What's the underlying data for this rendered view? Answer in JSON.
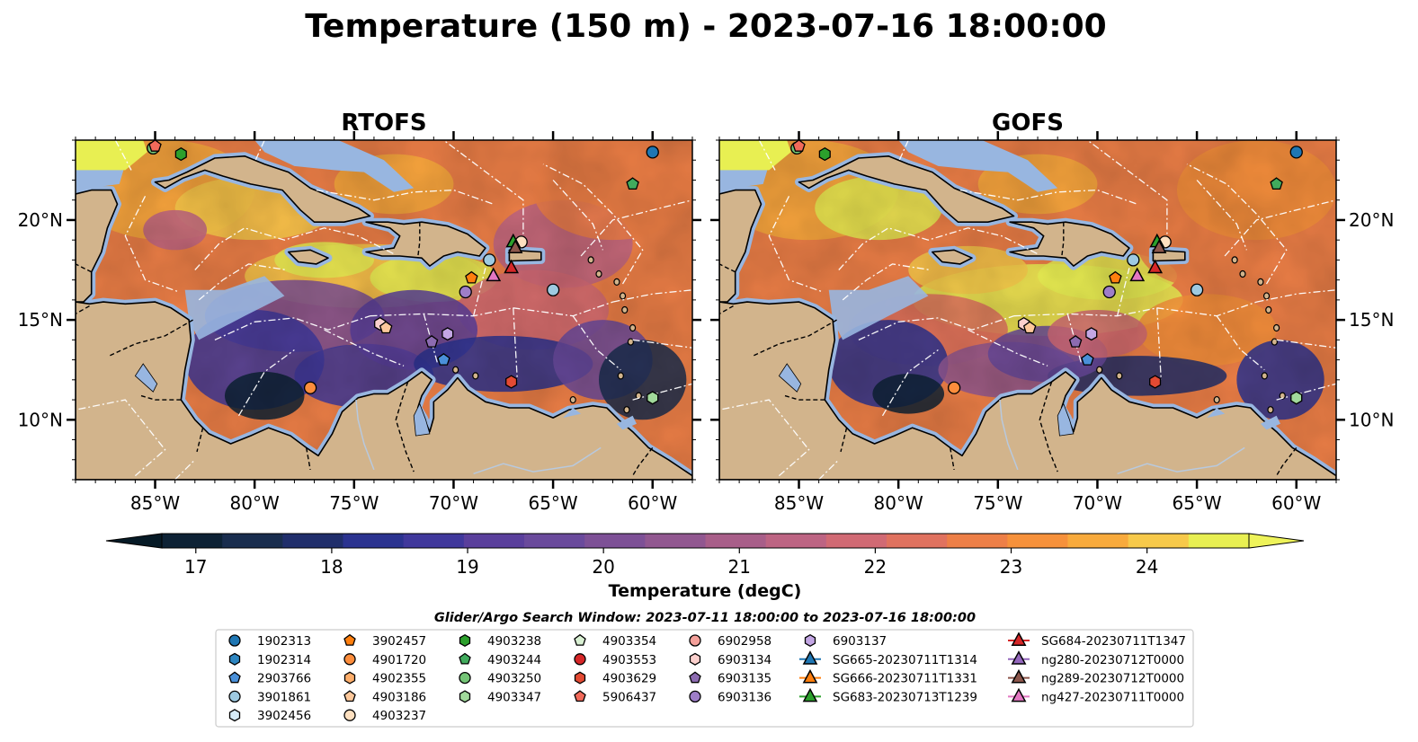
{
  "figure": {
    "title": "Temperature (150 m) - 2023-07-16 18:00:00",
    "search_window": "Glider/Argo Search Window: 2023-07-11 18:00:00 to 2023-07-16 18:00:00"
  },
  "panels": [
    {
      "title": "RTOFS"
    },
    {
      "title": "GOFS"
    }
  ],
  "axes": {
    "lon_range": [
      -89,
      -58
    ],
    "lat_range": [
      7,
      24
    ],
    "x_ticks": [
      {
        "value": -85,
        "label": "85°W"
      },
      {
        "value": -80,
        "label": "80°W"
      },
      {
        "value": -75,
        "label": "75°W"
      },
      {
        "value": -70,
        "label": "70°W"
      },
      {
        "value": -65,
        "label": "65°W"
      },
      {
        "value": -60,
        "label": "60°W"
      }
    ],
    "y_ticks": [
      {
        "value": 10,
        "label": "10°N"
      },
      {
        "value": 15,
        "label": "15°N"
      },
      {
        "value": 20,
        "label": "20°N"
      }
    ]
  },
  "colorbar": {
    "label": "Temperature (degC)",
    "range": [
      16.75,
      24.75
    ],
    "step": 0.5,
    "extend": "both",
    "ticks": [
      {
        "value": 17,
        "label": "17"
      },
      {
        "value": 18,
        "label": "18"
      },
      {
        "value": 19,
        "label": "19"
      },
      {
        "value": 20,
        "label": "20"
      },
      {
        "value": 21,
        "label": "21"
      },
      {
        "value": 22,
        "label": "22"
      },
      {
        "value": 23,
        "label": "23"
      },
      {
        "value": 24,
        "label": "24"
      }
    ],
    "colors": [
      "#0d2235",
      "#192d4e",
      "#202e6b",
      "#2b3390",
      "#40389c",
      "#5a3f9c",
      "#6a4a9c",
      "#7d5096",
      "#915790",
      "#a85e89",
      "#bd6483",
      "#d16a74",
      "#e0725f",
      "#ed7f47",
      "#f6913b",
      "#f8aa3c",
      "#f7c94a",
      "#e8ef52"
    ],
    "under_color": "#061a26",
    "over_color": "#eef35a"
  },
  "colors": {
    "land": "#d2b48c",
    "shelf": "#98b6e0",
    "river": "#b8c9de",
    "deep_cold": "#0b2233"
  },
  "legend": {
    "columns": [
      [
        {
          "label": "1902313",
          "marker": "circle",
          "color": "#1f77b4"
        },
        {
          "label": "1902314",
          "marker": "hexagon",
          "color": "#2e86c1"
        },
        {
          "label": "2903766",
          "marker": "pentagon",
          "color": "#4a90d9"
        },
        {
          "label": "3901861",
          "marker": "circle",
          "color": "#9ecae1"
        },
        {
          "label": "3902456",
          "marker": "hexagon",
          "color": "#d6ebf7"
        }
      ],
      [
        {
          "label": "3902457",
          "marker": "pentagon",
          "color": "#ff7f0e"
        },
        {
          "label": "4901720",
          "marker": "circle",
          "color": "#fd8d3c"
        },
        {
          "label": "4902355",
          "marker": "hexagon",
          "color": "#fdae6b"
        },
        {
          "label": "4903186",
          "marker": "pentagon",
          "color": "#fdc89b"
        },
        {
          "label": "4903237",
          "marker": "circle",
          "color": "#fee0c0"
        }
      ],
      [
        {
          "label": "4903238",
          "marker": "hexagon",
          "color": "#2ca02c"
        },
        {
          "label": "4903244",
          "marker": "pentagon",
          "color": "#41ab5d"
        },
        {
          "label": "4903250",
          "marker": "circle",
          "color": "#74c476"
        },
        {
          "label": "4903347",
          "marker": "hexagon",
          "color": "#a1d99b"
        }
      ],
      [
        {
          "label": "4903354",
          "marker": "pentagon",
          "color": "#d9f0d3"
        },
        {
          "label": "4903553",
          "marker": "circle",
          "color": "#d62728"
        },
        {
          "label": "4903629",
          "marker": "hexagon",
          "color": "#e34a33"
        },
        {
          "label": "5906437",
          "marker": "pentagon",
          "color": "#f16a5a"
        }
      ],
      [
        {
          "label": "6902958",
          "marker": "circle",
          "color": "#f4a09a"
        },
        {
          "label": "6903134",
          "marker": "hexagon",
          "color": "#fbd0cd"
        },
        {
          "label": "6903135",
          "marker": "pentagon",
          "color": "#8c6bb1"
        },
        {
          "label": "6903136",
          "marker": "circle",
          "color": "#9e7ec8"
        }
      ],
      [
        {
          "label": "6903137",
          "marker": "hexagon",
          "color": "#c3a6e4"
        },
        {
          "label": "SG665-20230711T1314",
          "marker": "triangle-line",
          "color": "#1f77b4"
        },
        {
          "label": "SG666-20230711T1331",
          "marker": "triangle-line",
          "color": "#ff7f0e"
        },
        {
          "label": "SG683-20230713T1239",
          "marker": "triangle-line",
          "color": "#2ca02c"
        }
      ],
      [
        {
          "label": "SG684-20230711T1347",
          "marker": "triangle-line",
          "color": "#d62728"
        },
        {
          "label": "ng280-20230712T0000",
          "marker": "triangle-line",
          "color": "#9467bd"
        },
        {
          "label": "ng289-20230712T0000",
          "marker": "triangle-line",
          "color": "#8c564b"
        },
        {
          "label": "ng427-20230711T0000",
          "marker": "triangle-line",
          "color": "#e377c2"
        }
      ]
    ]
  },
  "observations": [
    {
      "id": "1902313",
      "lon": -60.0,
      "lat": 23.4
    },
    {
      "id": "4903250",
      "lon": -85.1,
      "lat": 23.6
    },
    {
      "id": "4903238",
      "lon": -83.7,
      "lat": 23.3
    },
    {
      "id": "5906437",
      "lon": -85.0,
      "lat": 23.7
    },
    {
      "id": "4903244",
      "lon": -61.0,
      "lat": 21.8
    },
    {
      "id": "4903237",
      "lon": -66.6,
      "lat": 18.9
    },
    {
      "id": "3901861",
      "lon": -68.2,
      "lat": 18.0
    },
    {
      "id": "3902457",
      "lon": -69.1,
      "lat": 17.1
    },
    {
      "id": "6903136",
      "lon": -69.4,
      "lat": 16.4
    },
    {
      "id": "3901861",
      "lon": -65.0,
      "lat": 16.5
    },
    {
      "id": "6903134",
      "lon": -73.7,
      "lat": 14.8
    },
    {
      "id": "4903186",
      "lon": -73.4,
      "lat": 14.6
    },
    {
      "id": "6903135",
      "lon": -71.1,
      "lat": 13.9
    },
    {
      "id": "6903137",
      "lon": -70.3,
      "lat": 14.3
    },
    {
      "id": "2903766",
      "lon": -70.5,
      "lat": 13.0
    },
    {
      "id": "4901720",
      "lon": -77.2,
      "lat": 11.6
    },
    {
      "id": "4903629",
      "lon": -67.1,
      "lat": 11.9
    },
    {
      "id": "4903347",
      "lon": -60.0,
      "lat": 11.1
    },
    {
      "id": "SG683-20230713T1239",
      "lon": -67.0,
      "lat": 18.9
    },
    {
      "id": "ng289-20230712T0000",
      "lon": -66.9,
      "lat": 18.6
    },
    {
      "id": "SG684-20230711T1347",
      "lon": -67.1,
      "lat": 17.6
    },
    {
      "id": "ng427-20230711T0000",
      "lon": -68.0,
      "lat": 17.2
    }
  ]
}
